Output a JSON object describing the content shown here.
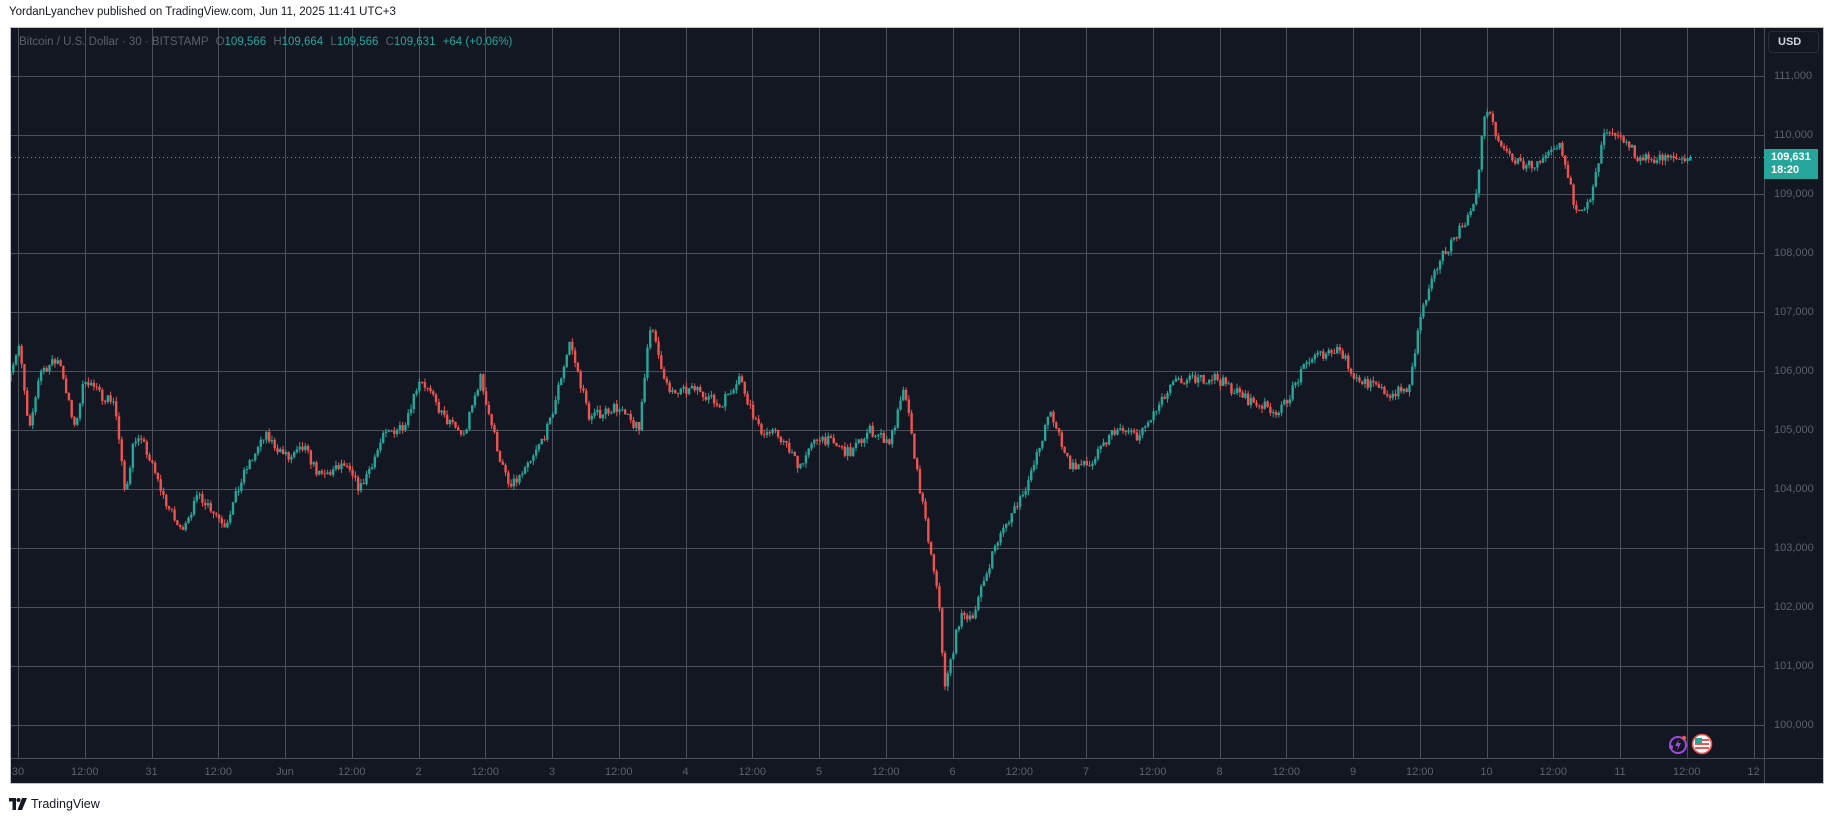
{
  "header": {
    "published_line": "YordanLyanchev published on TradingView.com, Jun 11, 2025 11:41 UTC+3"
  },
  "legend": {
    "symbol": "Bitcoin / U.S. Dollar · 30 · BITSTAMP",
    "open_label": "O",
    "open": "109,566",
    "high_label": "H",
    "high": "109,664",
    "low_label": "L",
    "low": "109,566",
    "close_label": "C",
    "close": "109,631",
    "change": "+64 (+0.06%)"
  },
  "price_scale": {
    "currency_button": "USD",
    "last_price": "109,631",
    "countdown": "18:20"
  },
  "footer": {
    "brand": "TradingView"
  },
  "colors": {
    "background": "#131722",
    "grid": "#4c505b",
    "up": "#26a69a",
    "down": "#ef5350",
    "axis_text": "#5d606b",
    "last_price_bg": "#26a69a"
  },
  "events": [
    {
      "icon": "lightning-event-icon",
      "color": "#9c4dde"
    },
    {
      "icon": "us-flag-economic-event-icon",
      "color": "#ef5350"
    }
  ],
  "chart_data": {
    "type": "candlestick",
    "title": "Bitcoin / U.S. Dollar · 30 · BITSTAMP",
    "timeframe": "30m",
    "currency": "USD",
    "ylim": [
      99600,
      111400
    ],
    "y_ticks": [
      {
        "label": "111,000",
        "value": 111000
      },
      {
        "label": "110,000",
        "value": 110000
      },
      {
        "label": "109,000",
        "value": 109000
      },
      {
        "label": "108,000",
        "value": 108000
      },
      {
        "label": "107,000",
        "value": 107000
      },
      {
        "label": "106,000",
        "value": 106000
      },
      {
        "label": "105,000",
        "value": 105000
      },
      {
        "label": "104,000",
        "value": 104000
      },
      {
        "label": "103,000",
        "value": 103000
      },
      {
        "label": "102,000",
        "value": 102000
      },
      {
        "label": "101,000",
        "value": 101000
      },
      {
        "label": "100,000",
        "value": 100000
      }
    ],
    "x_ticks": [
      {
        "label": "30",
        "day": 0.0
      },
      {
        "label": "12:00",
        "day": 0.5
      },
      {
        "label": "31",
        "day": 1.0
      },
      {
        "label": "12:00",
        "day": 1.5
      },
      {
        "label": "Jun",
        "day": 2.0
      },
      {
        "label": "12:00",
        "day": 2.5
      },
      {
        "label": "2",
        "day": 3.0
      },
      {
        "label": "12:00",
        "day": 3.5
      },
      {
        "label": "3",
        "day": 4.0
      },
      {
        "label": "12:00",
        "day": 4.5
      },
      {
        "label": "4",
        "day": 5.0
      },
      {
        "label": "12:00",
        "day": 5.5
      },
      {
        "label": "5",
        "day": 6.0
      },
      {
        "label": "12:00",
        "day": 6.5
      },
      {
        "label": "6",
        "day": 7.0
      },
      {
        "label": "12:00",
        "day": 7.5
      },
      {
        "label": "7",
        "day": 8.0
      },
      {
        "label": "12:00",
        "day": 8.5
      },
      {
        "label": "8",
        "day": 9.0
      },
      {
        "label": "12:00",
        "day": 9.5
      },
      {
        "label": "9",
        "day": 10.0
      },
      {
        "label": "12:00",
        "day": 10.5
      },
      {
        "label": "10",
        "day": 11.0
      },
      {
        "label": "12:00",
        "day": 11.5
      },
      {
        "label": "11",
        "day": 12.0
      },
      {
        "label": "12:00",
        "day": 12.5
      },
      {
        "label": "12",
        "day": 13.0
      }
    ],
    "last_price": 109631,
    "last": {
      "open": 109566,
      "high": 109664,
      "low": 109566,
      "close": 109631,
      "change": 64,
      "change_pct": 0.06
    },
    "price_path_waypoints": {
      "description": "approximate close path, day offset from May 30 00:00 -> price",
      "points": [
        [
          -0.05,
          105800
        ],
        [
          0.06,
          106400
        ],
        [
          0.13,
          104900
        ],
        [
          0.21,
          106000
        ],
        [
          0.36,
          106200
        ],
        [
          0.47,
          105000
        ],
        [
          0.55,
          105900
        ],
        [
          0.66,
          105600
        ],
        [
          0.77,
          105500
        ],
        [
          0.85,
          103900
        ],
        [
          0.92,
          104900
        ],
        [
          1.0,
          104700
        ],
        [
          1.15,
          103800
        ],
        [
          1.26,
          103300
        ],
        [
          1.41,
          103900
        ],
        [
          1.6,
          103400
        ],
        [
          1.75,
          104300
        ],
        [
          1.9,
          104900
        ],
        [
          2.08,
          104500
        ],
        [
          2.19,
          104700
        ],
        [
          2.31,
          104200
        ],
        [
          2.49,
          104400
        ],
        [
          2.61,
          104000
        ],
        [
          2.79,
          104900
        ],
        [
          2.94,
          105100
        ],
        [
          3.06,
          105900
        ],
        [
          3.24,
          105200
        ],
        [
          3.39,
          104900
        ],
        [
          3.51,
          105900
        ],
        [
          3.66,
          104500
        ],
        [
          3.73,
          104000
        ],
        [
          3.88,
          104400
        ],
        [
          4.03,
          105100
        ],
        [
          4.18,
          106500
        ],
        [
          4.33,
          105200
        ],
        [
          4.52,
          105400
        ],
        [
          4.7,
          105000
        ],
        [
          4.78,
          106800
        ],
        [
          4.93,
          105600
        ],
        [
          5.15,
          105700
        ],
        [
          5.3,
          105400
        ],
        [
          5.45,
          105900
        ],
        [
          5.6,
          105000
        ],
        [
          5.75,
          104900
        ],
        [
          5.9,
          104400
        ],
        [
          6.05,
          104900
        ],
        [
          6.28,
          104600
        ],
        [
          6.43,
          105000
        ],
        [
          6.58,
          104800
        ],
        [
          6.69,
          105700
        ],
        [
          6.74,
          104900
        ],
        [
          6.84,
          103500
        ],
        [
          6.95,
          102000
        ],
        [
          6.99,
          100600
        ],
        [
          7.1,
          101800
        ],
        [
          7.21,
          101900
        ],
        [
          7.36,
          103000
        ],
        [
          7.63,
          104200
        ],
        [
          7.78,
          105300
        ],
        [
          7.93,
          104400
        ],
        [
          8.08,
          104400
        ],
        [
          8.26,
          105000
        ],
        [
          8.45,
          104900
        ],
        [
          8.71,
          105800
        ],
        [
          9.01,
          105900
        ],
        [
          9.27,
          105500
        ],
        [
          9.5,
          105300
        ],
        [
          9.72,
          106200
        ],
        [
          9.94,
          106400
        ],
        [
          10.06,
          105900
        ],
        [
          10.32,
          105600
        ],
        [
          10.47,
          105700
        ],
        [
          10.55,
          106900
        ],
        [
          10.7,
          107900
        ],
        [
          10.96,
          108800
        ],
        [
          11.04,
          110500
        ],
        [
          11.15,
          109800
        ],
        [
          11.3,
          109500
        ],
        [
          11.45,
          109500
        ],
        [
          11.6,
          109800
        ],
        [
          11.71,
          108800
        ],
        [
          11.82,
          108800
        ],
        [
          11.93,
          110000
        ],
        [
          12.08,
          109900
        ],
        [
          12.19,
          109600
        ],
        [
          12.49,
          109600
        ],
        [
          12.56,
          109631
        ]
      ]
    },
    "annotations": [
      "Last price line 109,631 (dotted)",
      "Countdown 18:20"
    ]
  }
}
